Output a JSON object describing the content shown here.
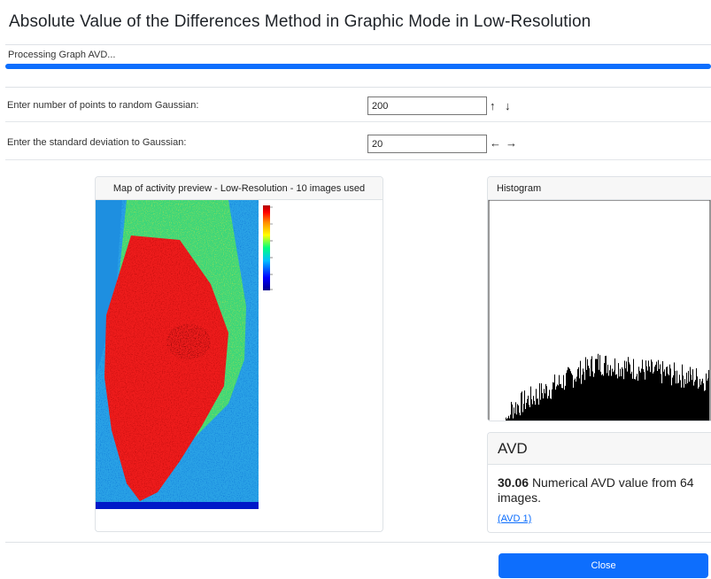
{
  "dialog": {
    "title": "Absolute Value of the Differences Method in Graphic Mode in Low-Resolution"
  },
  "progress": {
    "status_text": "Processing Graph AVD...",
    "fraction": 1.0,
    "color": "#0d6efd"
  },
  "inputs": {
    "points": {
      "label": "Enter number of points to random Gaussian:",
      "value": "200",
      "arrows": [
        "↑",
        "↓"
      ]
    },
    "stddev": {
      "label": "Enter the standard deviation to Gaussian:",
      "value": "20",
      "arrows": [
        "←",
        "→"
      ]
    }
  },
  "map_panel": {
    "title": "Map of activity preview - Low-Resolution - 10 images used",
    "colorbar_colors": [
      "#00008b",
      "#0000ff",
      "#00bfff",
      "#00ff7f",
      "#ffff00",
      "#ff8c00",
      "#ff0000",
      "#b00000"
    ]
  },
  "histogram_panel": {
    "title": "Histogram"
  },
  "avd": {
    "title": "AVD",
    "value": "30.06",
    "description": "Numerical AVD value from 64 images.",
    "link": "(AVD 1)"
  },
  "footer": {
    "close_label": "Close"
  }
}
